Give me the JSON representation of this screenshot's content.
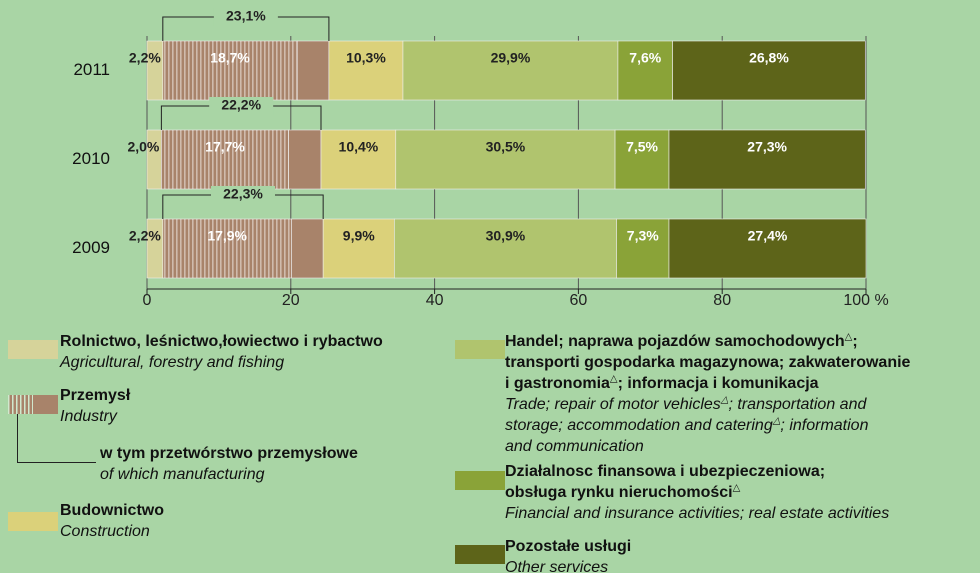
{
  "chart_data": {
    "type": "stacked_bar_horizontal",
    "categories": [
      "2011",
      "2010",
      "2009"
    ],
    "xlim": [
      0,
      100
    ],
    "xticks": [
      0,
      20,
      40,
      60,
      {
        "value": 100,
        "label": "100 %"
      }
    ],
    "xticks_extra": [
      80
    ],
    "grid": true,
    "industry": {
      "name": "Przemysł",
      "name_en": "Industry",
      "values": [
        23.1,
        22.2,
        22.3
      ],
      "value_labels": [
        "23,1%",
        "22,2%",
        "22,3%"
      ]
    },
    "series": [
      {
        "name": "Rolnictwo, leśnictwo,łowiectwo i rybactwo",
        "name_en": "Agricultural, forestry and fishing",
        "color": "#d6d39a",
        "values": [
          2.2,
          2.0,
          2.2
        ],
        "value_labels": [
          "2,2%",
          "2,0%",
          "2,2%"
        ]
      },
      {
        "name": "w tym przetwórstwo przemysłowe",
        "name_en": "of which manufacturing",
        "color": "#a8836a",
        "hatched": true,
        "values": [
          18.7,
          17.7,
          17.9
        ],
        "value_labels": [
          "18,7%",
          "17,7%",
          "17,9%"
        ]
      },
      {
        "color": "#a8836a",
        "values": [
          4.4,
          4.5,
          4.4
        ]
      },
      {
        "name": "Budownictwo",
        "name_en": "Construction",
        "color": "#dbd17a",
        "values": [
          10.3,
          10.4,
          9.9
        ],
        "value_labels": [
          "10,3%",
          "10,4%",
          "9,9%"
        ]
      },
      {
        "name": [
          "Handel; naprawa pojazdów samochodowych△;",
          "transporti gospodarka magazynowa; zakwaterowanie",
          "i gastronomia△; informacja i komunikacja"
        ],
        "name_en": [
          "Trade; repair of motor vehicles△; transportation and",
          "storage; accommodation and catering△; information",
          "and communication"
        ],
        "color": "#b0c46e",
        "values": [
          29.9,
          30.5,
          30.9
        ],
        "value_labels": [
          "29,9%",
          "30,5%",
          "30,9%"
        ]
      },
      {
        "name": [
          "Działalnosc finansowa i ubezpieczeniowa;",
          "obsługa rynku nieruchomości△"
        ],
        "name_en": [
          "Financial and insurance activities; real estate activities"
        ],
        "color": "#8aa338",
        "values": [
          7.6,
          7.5,
          7.3
        ],
        "value_labels": [
          "7,6%",
          "7,5%",
          "7,3%"
        ]
      },
      {
        "name": "Pozostałe usługi",
        "name_en": "Other services",
        "color": "#5d6419",
        "values": [
          26.8,
          27.3,
          27.4
        ],
        "value_labels": [
          "26,8%",
          "27,3%",
          "27,4%"
        ]
      }
    ]
  }
}
